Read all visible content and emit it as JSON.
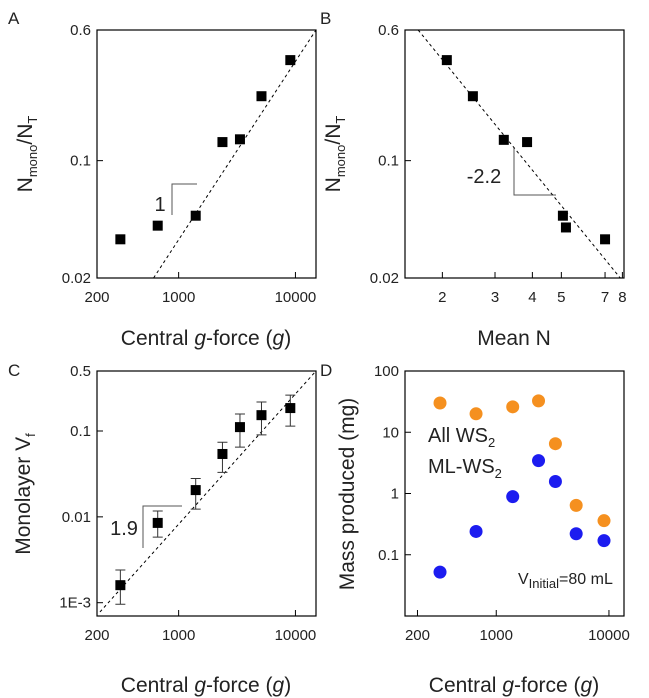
{
  "chart_data": [
    {
      "type": "scatter",
      "panel": "A",
      "log_x": true,
      "log_y": true,
      "xlim": [
        200,
        15000
      ],
      "xticks": [
        200,
        1000,
        10000
      ],
      "ylim": [
        0.02,
        0.6
      ],
      "yticks": [
        0.02,
        0.1,
        0.6
      ],
      "x_label": [
        "Central ",
        "g",
        "-force (",
        "g",
        ")"
      ],
      "y_label": [
        "N",
        "mono",
        "/N",
        "T"
      ],
      "series": [
        {
          "color": "#000000",
          "marker": "square",
          "x": [
            317,
            662,
            1400,
            2372,
            3350,
            5120,
            9040
          ],
          "values": [
            0.034,
            0.041,
            0.047,
            0.129,
            0.134,
            0.242,
            0.397
          ]
        }
      ],
      "fit_line": {
        "x": [
          610,
          15000
        ],
        "y": [
          0.02,
          0.6
        ]
      },
      "slope_label": "1"
    },
    {
      "type": "scatter",
      "panel": "B",
      "log_x": true,
      "log_y": true,
      "xlim": [
        1.5,
        8.1
      ],
      "xticks": [
        2,
        3,
        4,
        5,
        7,
        8
      ],
      "ylim": [
        0.02,
        0.6
      ],
      "yticks": [
        0.02,
        0.1,
        0.6
      ],
      "x_label": [
        "Mean N"
      ],
      "y_label": [
        "N",
        "mono",
        "/N",
        "T"
      ],
      "series": [
        {
          "color": "#000000",
          "marker": "square",
          "x": [
            2.07,
            2.53,
            3.21,
            3.84,
            5.06,
            5.18,
            7.0
          ],
          "values": [
            0.397,
            0.242,
            0.133,
            0.129,
            0.047,
            0.04,
            0.034
          ]
        }
      ],
      "fit_line": {
        "x": [
          1.66,
          7.87
        ],
        "y": [
          0.6,
          0.02
        ]
      },
      "slope_label": "-2.2"
    },
    {
      "type": "scatter",
      "panel": "C",
      "log_x": true,
      "log_y": true,
      "xlim": [
        200,
        15000
      ],
      "xticks": [
        200,
        1000,
        10000
      ],
      "ylim": [
        0.0007,
        0.5
      ],
      "yticks": [
        {
          "value": 0.001,
          "label": "1E-3"
        },
        0.01,
        0.1,
        0.5
      ],
      "x_label": [
        "Central ",
        "g",
        "-force (",
        "g",
        ")"
      ],
      "y_label": [
        "Monolayer V",
        "f"
      ],
      "series": [
        {
          "color": "#000000",
          "marker": "square",
          "x": [
            317,
            662,
            1400,
            2372,
            3350,
            5120,
            9040
          ],
          "values": [
            0.0016,
            0.0085,
            0.0205,
            0.054,
            0.111,
            0.153,
            0.185
          ],
          "error_low": [
            0.00096,
            0.0058,
            0.0123,
            0.033,
            0.065,
            0.09,
            0.114
          ],
          "error_high": [
            0.0024,
            0.0117,
            0.028,
            0.074,
            0.158,
            0.218,
            0.262
          ]
        }
      ],
      "fit_line": {
        "x": [
          212,
          15000
        ],
        "y": [
          0.00078,
          0.5
        ]
      },
      "slope_label": "1.9"
    },
    {
      "type": "scatter",
      "panel": "D",
      "log_x": true,
      "log_y": true,
      "xlim": [
        155,
        13600
      ],
      "xticks": [
        200,
        1000,
        10000
      ],
      "ylim": [
        0.01,
        100
      ],
      "yticks": [
        0.1,
        1,
        10,
        100
      ],
      "x_label": [
        "Central ",
        "g",
        "-force (",
        "g",
        ")"
      ],
      "y_label": [
        "Mass produced (mg)"
      ],
      "series": [
        {
          "name": [
            "All WS",
            "2"
          ],
          "color": "#f5901f",
          "marker": "circle",
          "x": [
            317,
            662,
            1400,
            2372,
            3350,
            5120,
            9040
          ],
          "values": [
            30,
            20,
            26,
            32.5,
            6.5,
            0.64,
            0.36
          ]
        },
        {
          "name": [
            "ML-WS",
            "2"
          ],
          "color": "#1c1cf0",
          "marker": "circle",
          "x": [
            317,
            662,
            1400,
            2372,
            3350,
            5120,
            9040
          ],
          "values": [
            0.052,
            0.24,
            0.89,
            3.44,
            1.57,
            0.22,
            0.17
          ]
        }
      ],
      "note": [
        "V",
        "Initial",
        "=80 mL"
      ]
    }
  ]
}
